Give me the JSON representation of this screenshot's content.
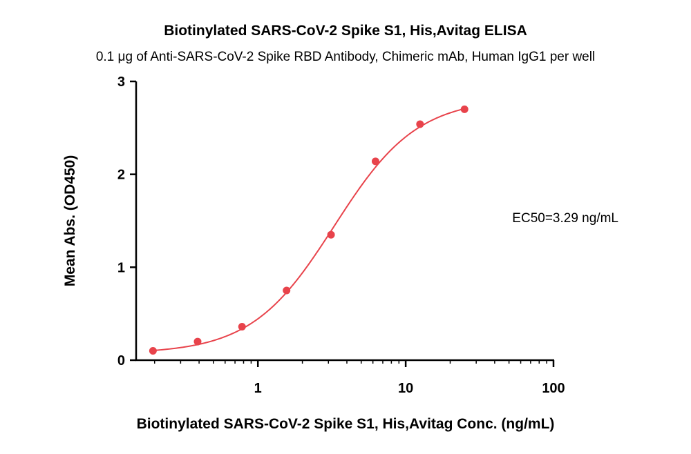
{
  "chart_data": {
    "type": "scatter",
    "title": "Biotinylated SARS-CoV-2 Spike S1, His,Avitag ELISA",
    "subtitle": "0.1 μg of Anti-SARS-CoV-2 Spike RBD Antibody, Chimeric mAb, Human IgG1 per well",
    "xlabel": "Biotinylated SARS-CoV-2 Spike S1, His,Avitag Conc. (ng/mL)",
    "ylabel": "Mean Abs. (OD450)",
    "x_scale": "log",
    "xlim": [
      0.15,
      100
    ],
    "ylim": [
      0,
      3
    ],
    "x_ticks": [
      1,
      10,
      100
    ],
    "x_tick_labels": [
      "1",
      "10",
      "100"
    ],
    "y_ticks": [
      0,
      1,
      2,
      3
    ],
    "y_tick_labels": [
      "0",
      "1",
      "2",
      "3"
    ],
    "grid": false,
    "series": [
      {
        "x": [
          0.195,
          0.391,
          0.781,
          1.563,
          3.125,
          6.25,
          12.5,
          25
        ],
        "y": [
          0.1,
          0.2,
          0.36,
          0.75,
          1.35,
          2.14,
          2.54,
          2.7
        ],
        "fit": "4PL",
        "color": "#e8434b"
      }
    ],
    "annotations": [
      {
        "text": "EC50=3.29 ng/mL",
        "anchor": "right-middle"
      }
    ]
  }
}
